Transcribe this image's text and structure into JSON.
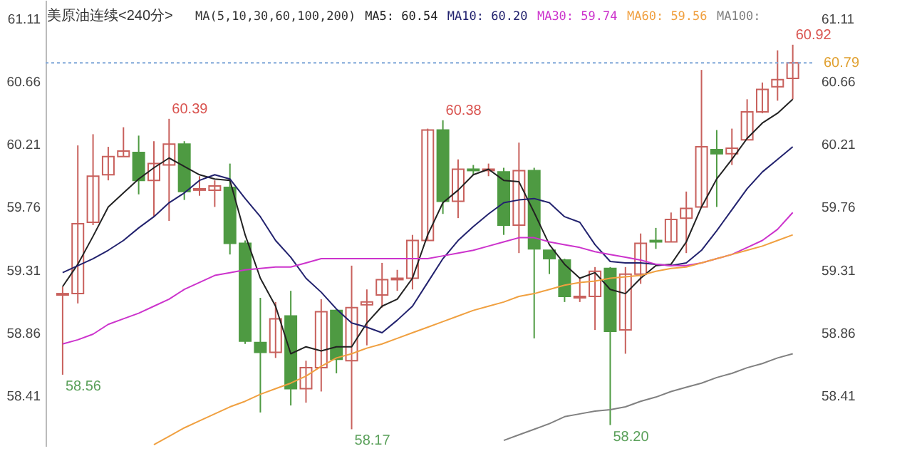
{
  "chart_data": {
    "type": "candlestick",
    "title": "美原油连续<240分>",
    "subtitle": "MA(5,10,30,60,100,200)",
    "categories": [
      null,
      null,
      null,
      null,
      null,
      null,
      null,
      null,
      null,
      null,
      null,
      null,
      null,
      null,
      null,
      null,
      null,
      null,
      null,
      null,
      null,
      null,
      null,
      null,
      null,
      null,
      null,
      null,
      null,
      null,
      null,
      null,
      null,
      null,
      null,
      null,
      null,
      null,
      null,
      null,
      null,
      null,
      null,
      null,
      null,
      null,
      null,
      null,
      null
    ],
    "ohlc": [
      [
        59.13,
        59.19,
        58.56,
        59.14
      ],
      [
        59.14,
        60.2,
        59.07,
        59.64
      ],
      [
        59.65,
        60.28,
        59.63,
        59.98
      ],
      [
        59.99,
        60.19,
        59.95,
        60.12
      ],
      [
        60.12,
        60.33,
        60.12,
        60.16
      ],
      [
        60.15,
        60.27,
        59.85,
        59.95
      ],
      [
        59.95,
        60.23,
        59.69,
        60.07
      ],
      [
        60.06,
        60.39,
        59.66,
        60.21
      ],
      [
        60.21,
        60.23,
        59.81,
        59.87
      ],
      [
        59.88,
        59.98,
        59.84,
        59.89
      ],
      [
        59.88,
        59.95,
        59.76,
        59.91
      ],
      [
        59.9,
        60.07,
        59.42,
        59.5
      ],
      [
        59.5,
        59.52,
        58.78,
        58.8
      ],
      [
        58.79,
        59.11,
        58.29,
        58.72
      ],
      [
        58.72,
        59.08,
        58.68,
        58.96
      ],
      [
        58.98,
        59.16,
        58.34,
        58.46
      ],
      [
        58.46,
        58.66,
        58.36,
        58.61
      ],
      [
        58.61,
        59.1,
        58.44,
        59.01
      ],
      [
        59.02,
        59.03,
        58.57,
        58.67
      ],
      [
        58.66,
        59.34,
        58.17,
        59.04
      ],
      [
        59.06,
        59.17,
        58.77,
        59.08
      ],
      [
        59.13,
        59.36,
        59.04,
        59.24
      ],
      [
        59.24,
        59.31,
        59.16,
        59.25
      ],
      [
        59.25,
        59.56,
        59.17,
        59.52
      ],
      [
        59.52,
        60.32,
        59.52,
        60.31
      ],
      [
        60.31,
        60.38,
        59.71,
        59.8
      ],
      [
        59.8,
        60.1,
        59.68,
        60.03
      ],
      [
        60.03,
        60.06,
        59.99,
        60.02
      ],
      [
        60.02,
        60.07,
        59.98,
        60.03
      ],
      [
        60.01,
        60.04,
        59.56,
        59.63
      ],
      [
        59.63,
        60.22,
        59.43,
        60.02
      ],
      [
        60.02,
        60.04,
        58.82,
        59.46
      ],
      [
        59.45,
        59.45,
        59.28,
        59.39
      ],
      [
        59.38,
        59.39,
        59.08,
        59.12
      ],
      [
        59.11,
        59.25,
        59.08,
        59.12
      ],
      [
        59.12,
        59.33,
        58.88,
        59.3
      ],
      [
        59.32,
        59.33,
        58.2,
        58.87
      ],
      [
        58.88,
        59.33,
        58.71,
        59.28
      ],
      [
        59.28,
        59.57,
        59.21,
        59.5
      ],
      [
        59.52,
        59.61,
        59.46,
        59.51
      ],
      [
        59.51,
        59.72,
        59.51,
        59.67
      ],
      [
        59.68,
        59.87,
        59.43,
        59.75
      ],
      [
        59.76,
        60.74,
        59.76,
        60.19
      ],
      [
        60.17,
        60.31,
        59.76,
        60.14
      ],
      [
        60.14,
        60.32,
        60.06,
        60.18
      ],
      [
        60.24,
        60.53,
        60.24,
        60.44
      ],
      [
        60.44,
        60.65,
        60.43,
        60.6
      ],
      [
        60.62,
        60.88,
        60.52,
        60.67
      ],
      [
        60.68,
        60.92,
        60.53,
        60.79
      ]
    ],
    "colors": [
      "#c8605c",
      "#c8605c",
      "#c8605c",
      "#c8605c",
      "#c8605c",
      "#4e9a42",
      "#c8605c",
      "#c8605c",
      "#4e9a42",
      "#c8605c",
      "#c8605c",
      "#4e9a42",
      "#4e9a42",
      "#4e9a42",
      "#c8605c",
      "#4e9a42",
      "#c8605c",
      "#c8605c",
      "#4e9a42",
      "#c8605c",
      "#c8605c",
      "#c8605c",
      "#c8605c",
      "#c8605c",
      "#c8605c",
      "#4e9a42",
      "#c8605c",
      "#4e9a42",
      "#c8605c",
      "#4e9a42",
      "#c8605c",
      "#4e9a42",
      "#4e9a42",
      "#4e9a42",
      "#c8605c",
      "#c8605c",
      "#4e9a42",
      "#c8605c",
      "#c8605c",
      "#4e9a42",
      "#c8605c",
      "#c8605c",
      "#c8605c",
      "#4e9a42",
      "#c8605c",
      "#c8605c",
      "#c8605c",
      "#c8605c",
      "#c8605c"
    ],
    "series": [
      {
        "name": "MA5: 60.54",
        "type": "line",
        "color": "#222222",
        "values": [
          59.19,
          59.35,
          59.55,
          59.76,
          59.86,
          59.96,
          60.04,
          60.11,
          60.05,
          59.99,
          59.96,
          59.95,
          59.56,
          59.25,
          59.05,
          58.71,
          58.76,
          58.73,
          58.76,
          58.76,
          58.93,
          59.05,
          59.1,
          59.25,
          59.56,
          59.79,
          59.88,
          59.99,
          60.03,
          59.95,
          59.94,
          59.72,
          59.49,
          59.35,
          59.25,
          59.29,
          59.17,
          59.14,
          59.25,
          59.34,
          59.35,
          59.51,
          59.76,
          59.96,
          60.1,
          60.25,
          60.36,
          60.43,
          60.53
        ]
      },
      {
        "name": "MA10: 60.20",
        "type": "line",
        "color": "#22226e",
        "values": [
          59.29,
          59.34,
          59.39,
          59.45,
          59.52,
          59.61,
          59.69,
          59.79,
          59.86,
          59.95,
          59.99,
          59.96,
          59.82,
          59.69,
          59.52,
          59.4,
          59.25,
          59.15,
          59.03,
          58.93,
          58.9,
          58.86,
          58.95,
          59.05,
          59.22,
          59.39,
          59.52,
          59.62,
          59.71,
          59.79,
          59.81,
          59.82,
          59.79,
          59.69,
          59.65,
          59.49,
          59.37,
          59.36,
          59.36,
          59.35,
          59.34,
          59.36,
          59.45,
          59.59,
          59.74,
          59.89,
          60.01,
          60.1,
          60.19
        ]
      },
      {
        "name": "MA30: 59.74",
        "type": "line",
        "color": "#cc33cc",
        "values": [
          58.78,
          58.81,
          58.85,
          58.92,
          58.96,
          59.0,
          59.05,
          59.1,
          59.17,
          59.22,
          59.27,
          59.29,
          59.31,
          59.32,
          59.33,
          59.33,
          59.36,
          59.39,
          59.39,
          59.39,
          59.39,
          59.39,
          59.39,
          59.39,
          59.39,
          59.41,
          59.43,
          59.45,
          59.48,
          59.51,
          59.54,
          59.54,
          59.51,
          59.49,
          59.47,
          59.44,
          59.42,
          59.4,
          59.38,
          59.35,
          59.34,
          59.34,
          59.36,
          59.39,
          59.42,
          59.47,
          59.52,
          59.6,
          59.72
        ]
      },
      {
        "name": "MA60: 59.56",
        "type": "line",
        "color": "#f0a040",
        "values": [
          null,
          null,
          null,
          null,
          null,
          null,
          58.06,
          58.12,
          58.18,
          58.23,
          58.28,
          58.33,
          58.37,
          58.42,
          58.46,
          58.5,
          58.55,
          58.62,
          58.68,
          58.71,
          58.75,
          58.78,
          58.82,
          58.86,
          58.9,
          58.94,
          58.98,
          59.02,
          59.05,
          59.08,
          59.12,
          59.14,
          59.17,
          59.2,
          59.22,
          59.23,
          59.25,
          59.26,
          59.27,
          59.3,
          59.32,
          59.33,
          59.36,
          59.39,
          59.42,
          59.45,
          59.48,
          59.52,
          59.56
        ]
      },
      {
        "name": "MA100:",
        "type": "line",
        "color": "#808080",
        "values": [
          null,
          null,
          null,
          null,
          null,
          null,
          null,
          null,
          null,
          null,
          null,
          null,
          null,
          null,
          null,
          null,
          null,
          null,
          null,
          null,
          null,
          null,
          null,
          null,
          null,
          null,
          null,
          null,
          null,
          58.09,
          58.13,
          58.17,
          58.21,
          58.26,
          58.28,
          58.3,
          58.31,
          58.33,
          58.37,
          58.4,
          58.44,
          58.47,
          58.5,
          58.54,
          58.57,
          58.61,
          58.64,
          58.68,
          58.71
        ]
      }
    ],
    "ylim": [
      58.05,
      61.24
    ],
    "yticks": [
      58.41,
      58.86,
      59.31,
      59.76,
      60.21,
      60.66,
      61.11
    ],
    "y2lim": [
      58.05,
      61.24
    ],
    "y2ticks": [
      58.41,
      58.86,
      59.31,
      59.76,
      60.21,
      60.66,
      61.11
    ],
    "ref_lines": [
      {
        "axis": "y",
        "value": 60.79,
        "label": "60.79",
        "color": "#7fa7d8",
        "line_style": "dotted"
      }
    ],
    "annotations": [
      "60.39",
      "60.38",
      "60.92",
      "58.56",
      "58.17",
      "58.20"
    ],
    "legend": "top",
    "grid": false,
    "tick_labels": "y"
  }
}
